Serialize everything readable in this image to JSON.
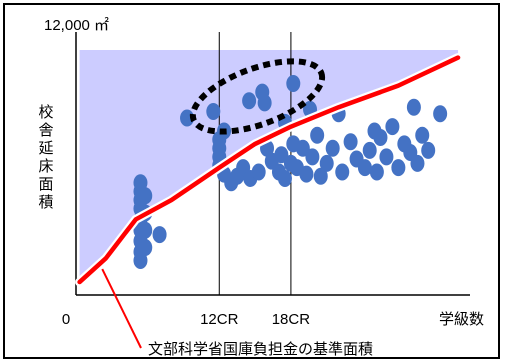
{
  "chart_data": {
    "type": "scatter",
    "title": "",
    "ylabel": "校舎延床面積",
    "xlabel": "学級数",
    "y_top_tick_label": "12,000 ㎡",
    "x_tick_labels": [
      "0",
      "12CR",
      "18CR"
    ],
    "reference_line_label": "文部科学省国庫負担金の基準面積",
    "reference_lines_at": [
      "12CR",
      "18CR"
    ],
    "grid": false,
    "legend": "none",
    "colors": {
      "points": "#4472c4",
      "standard_line": "#ff0000",
      "shaded_band": "#ccccff",
      "axis": "#000000"
    },
    "series": [
      {
        "name": "文部科学省国庫負担金の基準面積",
        "kind": "line",
        "points": [
          [
            0.3,
            0.6
          ],
          [
            2.5,
            1.7
          ],
          [
            5,
            3.5
          ],
          [
            8,
            4.4
          ],
          [
            12,
            5.9
          ],
          [
            15,
            7.0
          ],
          [
            18,
            7.8
          ],
          [
            22,
            8.7
          ],
          [
            27,
            9.7
          ],
          [
            32,
            11.0
          ]
        ]
      },
      {
        "name": "",
        "kind": "scatter",
        "points": [
          [
            5.4,
            5.2
          ],
          [
            5.4,
            4.8
          ],
          [
            5.4,
            4.4
          ],
          [
            5.4,
            4.0
          ],
          [
            5.4,
            3.5
          ],
          [
            5.4,
            3.0
          ],
          [
            5.4,
            2.5
          ],
          [
            5.4,
            2.0
          ],
          [
            5.4,
            1.6
          ],
          [
            5.8,
            4.6
          ],
          [
            5.8,
            3.8
          ],
          [
            5.8,
            3.0
          ],
          [
            5.8,
            2.2
          ],
          [
            7.0,
            2.8
          ],
          [
            12.0,
            7.2
          ],
          [
            12.0,
            6.8
          ],
          [
            12.0,
            6.4
          ],
          [
            12.0,
            6.0
          ],
          [
            12.4,
            7.6
          ],
          [
            12.4,
            5.6
          ],
          [
            13.0,
            5.2
          ],
          [
            13.5,
            5.5
          ],
          [
            14.0,
            5.9
          ],
          [
            14.6,
            5.4
          ],
          [
            15.3,
            5.7
          ],
          [
            16.0,
            6.8
          ],
          [
            16.4,
            6.2
          ],
          [
            17.0,
            5.7
          ],
          [
            17.2,
            6.5
          ],
          [
            17.5,
            5.4
          ],
          [
            18.0,
            6.1
          ],
          [
            18.2,
            7.0
          ],
          [
            18.5,
            5.9
          ],
          [
            19.0,
            6.8
          ],
          [
            19.3,
            5.6
          ],
          [
            19.8,
            6.4
          ],
          [
            20.2,
            7.4
          ],
          [
            20.5,
            5.5
          ],
          [
            21.0,
            6.1
          ],
          [
            21.5,
            6.8
          ],
          [
            22.0,
            8.4
          ],
          [
            22.3,
            5.7
          ],
          [
            23.0,
            7.1
          ],
          [
            23.5,
            6.3
          ],
          [
            24.2,
            5.9
          ],
          [
            24.6,
            6.7
          ],
          [
            25.2,
            5.7
          ],
          [
            25.5,
            7.3
          ],
          [
            26.0,
            6.4
          ],
          [
            26.5,
            7.8
          ],
          [
            27.0,
            5.9
          ],
          [
            27.5,
            7.0
          ],
          [
            28.0,
            6.6
          ],
          [
            28.3,
            8.7
          ],
          [
            28.6,
            6.1
          ],
          [
            29.0,
            7.4
          ],
          [
            29.5,
            6.7
          ],
          [
            9.3,
            8.2
          ],
          [
            11.5,
            8.5
          ],
          [
            14.5,
            9.0
          ],
          [
            15.6,
            9.4
          ],
          [
            15.8,
            8.9
          ],
          [
            17.5,
            8.0
          ],
          [
            18.2,
            9.8
          ],
          [
            19.6,
            8.6
          ],
          [
            25.0,
            7.6
          ],
          [
            30.5,
            8.4
          ]
        ]
      }
    ],
    "annotations": [
      {
        "type": "dashed-ellipse",
        "label": ""
      },
      {
        "type": "shaded-band",
        "label": ""
      }
    ],
    "xlim": [
      0,
      33
    ],
    "ylim": [
      0,
      12
    ]
  }
}
